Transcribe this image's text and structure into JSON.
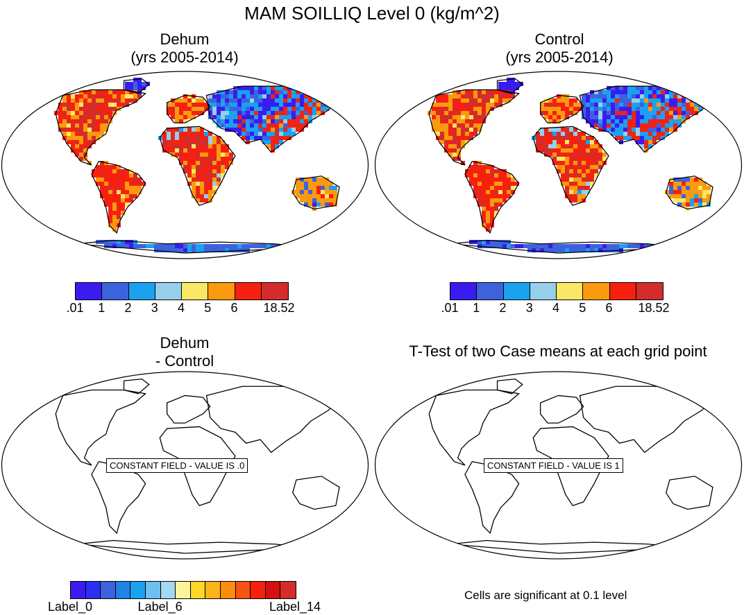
{
  "figure": {
    "title": "MAM SOILLIQ Level 0 (kg/m^2)"
  },
  "panels": [
    {
      "id": "dehum",
      "title_line1": "Dehum",
      "title_line2": "(yrs 2005-2014)",
      "field": "colored",
      "colorbar": {
        "colors": [
          "#3b1cf0",
          "#3c63dd",
          "#1aa1f0",
          "#95cfea",
          "#fbe766",
          "#fb9a0e",
          "#f7200f",
          "#d42b2b"
        ],
        "labels": [
          ".01",
          "1",
          "2",
          "3",
          "4",
          "5",
          "6",
          "18.52"
        ]
      }
    },
    {
      "id": "control",
      "title_line1": "Control",
      "title_line2": "(yrs 2005-2014)",
      "field": "colored",
      "colorbar": {
        "colors": [
          "#3b1cf0",
          "#3c63dd",
          "#1aa1f0",
          "#95cfea",
          "#fbe766",
          "#fb9a0e",
          "#f7200f",
          "#d42b2b"
        ],
        "labels": [
          ".01",
          "1",
          "2",
          "3",
          "4",
          "5",
          "6",
          "18.52"
        ]
      }
    },
    {
      "id": "diff",
      "title_line1": "Dehum",
      "title_line2": "- Control",
      "field": "constant",
      "constant_text": "CONSTANT FIELD - VALUE IS .0",
      "colorbar": {
        "colors": [
          "#3b1cf0",
          "#2b2ff4",
          "#3c63dd",
          "#2283e6",
          "#1aa1f0",
          "#6dc0f0",
          "#a6d7f0",
          "#fdf39c",
          "#fbd727",
          "#fbb41a",
          "#fb8c0e",
          "#f95312",
          "#f7200f",
          "#d80f0f",
          "#d42b2b"
        ],
        "labels": [
          "Label_0",
          "Label_6",
          "Label_14"
        ]
      }
    },
    {
      "id": "ttest",
      "title_line1": "T-Test of two Case means at each grid point",
      "title_line2": "",
      "field": "constant",
      "constant_text": "CONSTANT FIELD - VALUE IS 1",
      "note": "Cells are significant at 0.1 level"
    }
  ]
}
